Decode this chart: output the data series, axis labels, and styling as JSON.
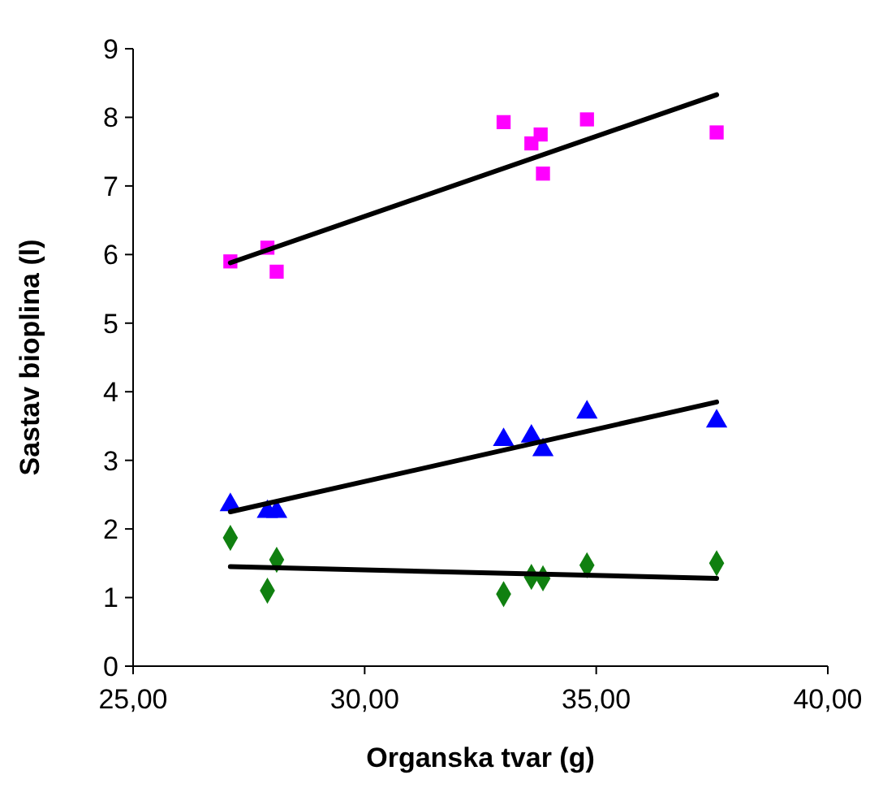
{
  "chart_data": {
    "type": "scatter",
    "xlabel": "Organska tvar (g)",
    "ylabel": "Sastav bioplina (l)",
    "xlim": [
      25,
      40
    ],
    "xticks": [
      {
        "value": 25,
        "label": "25,00"
      },
      {
        "value": 30,
        "label": "30,00"
      },
      {
        "value": 35,
        "label": "35,00"
      },
      {
        "value": 40,
        "label": "40,00"
      }
    ],
    "ylim": [
      0,
      9
    ],
    "yticks": [
      0,
      1,
      2,
      3,
      4,
      5,
      6,
      7,
      8,
      9
    ],
    "grid": false,
    "series": [
      {
        "marker": "square",
        "color": "#ff00ff",
        "x": [
          27.1,
          27.9,
          28.1,
          33.0,
          33.6,
          33.8,
          33.85,
          34.8,
          37.6
        ],
        "values": [
          5.9,
          6.1,
          5.75,
          7.93,
          7.62,
          7.75,
          7.18,
          7.97,
          7.78
        ]
      },
      {
        "marker": "triangle",
        "color": "#0000ff",
        "x": [
          27.1,
          27.9,
          28.1,
          33.0,
          33.6,
          33.85,
          34.8,
          37.6
        ],
        "values": [
          2.35,
          2.25,
          2.25,
          3.3,
          3.35,
          3.15,
          3.7,
          3.57
        ]
      },
      {
        "marker": "diamond",
        "color": "#108010",
        "x": [
          27.1,
          27.9,
          28.1,
          33.0,
          33.6,
          33.85,
          34.8,
          37.6
        ],
        "values": [
          1.87,
          1.1,
          1.55,
          1.05,
          1.3,
          1.28,
          1.47,
          1.5
        ]
      },
      {
        "type": "line",
        "marker": "none",
        "line_style": "solid",
        "color": "#000000",
        "x": [
          27.1,
          37.6
        ],
        "values": [
          5.88,
          8.33
        ]
      },
      {
        "type": "line",
        "marker": "none",
        "line_style": "solid",
        "color": "#000000",
        "x": [
          27.1,
          37.6
        ],
        "values": [
          2.25,
          3.85
        ]
      },
      {
        "type": "line",
        "marker": "none",
        "line_style": "solid",
        "color": "#000000",
        "x": [
          27.1,
          37.6
        ],
        "values": [
          1.45,
          1.28
        ]
      }
    ]
  }
}
